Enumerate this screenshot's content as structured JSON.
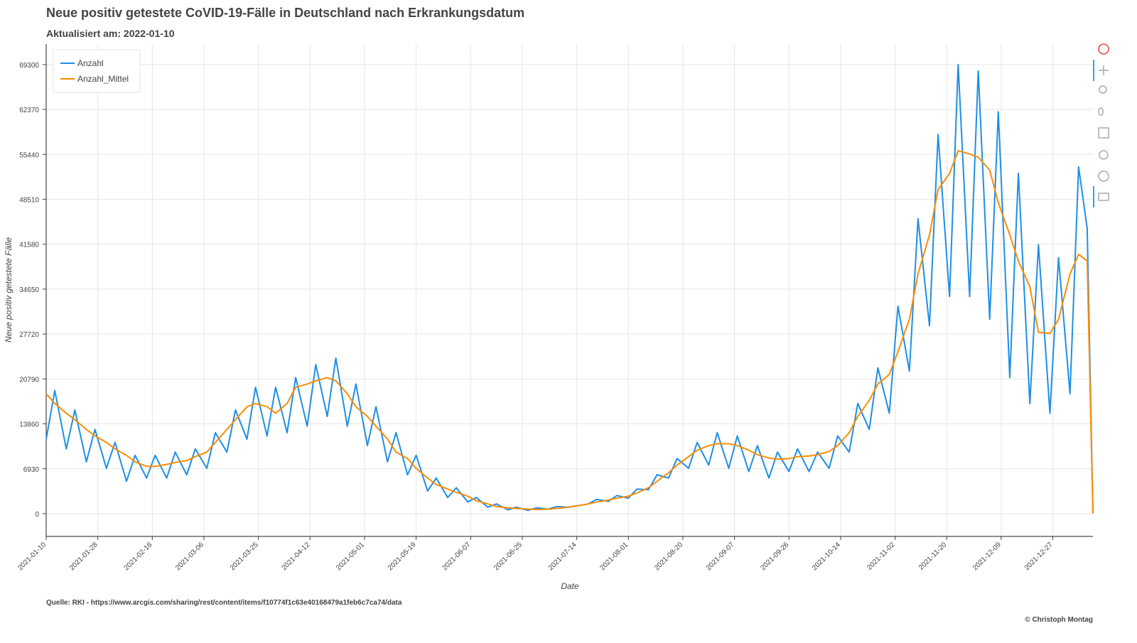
{
  "chart_data": {
    "type": "line",
    "title": "Neue positiv getestete CoVID-19-Fälle in Deutschland nach Erkrankungsdatum",
    "subtitle": "Aktualisiert am: 2022-01-10",
    "x_label": "Date",
    "y_label": "Neue positiv getestete Fälle",
    "source": "Quelle: RKI - https://www.arcgis.com/sharing/rest/content/items/f10774f1c63e40168479a1feb6c7ca74/data",
    "credit": "© Christoph Montag",
    "legend": "top_left",
    "grid": true,
    "x": [
      "2021-01-10",
      "2021-01-13",
      "2021-01-17",
      "2021-01-20",
      "2021-01-24",
      "2021-01-27",
      "2021-01-31",
      "2021-02-03",
      "2021-02-07",
      "2021-02-10",
      "2021-02-14",
      "2021-02-17",
      "2021-02-21",
      "2021-02-24",
      "2021-02-28",
      "2021-03-03",
      "2021-03-07",
      "2021-03-10",
      "2021-03-14",
      "2021-03-17",
      "2021-03-21",
      "2021-03-24",
      "2021-03-28",
      "2021-03-31",
      "2021-04-04",
      "2021-04-07",
      "2021-04-11",
      "2021-04-14",
      "2021-04-18",
      "2021-04-21",
      "2021-04-25",
      "2021-04-28",
      "2021-05-02",
      "2021-05-05",
      "2021-05-09",
      "2021-05-12",
      "2021-05-16",
      "2021-05-19",
      "2021-05-23",
      "2021-05-26",
      "2021-05-30",
      "2021-06-02",
      "2021-06-06",
      "2021-06-09",
      "2021-06-13",
      "2021-06-16",
      "2021-06-20",
      "2021-06-23",
      "2021-06-27",
      "2021-06-30",
      "2021-07-04",
      "2021-07-07",
      "2021-07-11",
      "2021-07-14",
      "2021-07-18",
      "2021-07-21",
      "2021-07-25",
      "2021-07-28",
      "2021-08-01",
      "2021-08-04",
      "2021-08-08",
      "2021-08-11",
      "2021-08-15",
      "2021-08-18",
      "2021-08-22",
      "2021-08-25",
      "2021-08-29",
      "2021-09-01",
      "2021-09-05",
      "2021-09-08",
      "2021-09-12",
      "2021-09-15",
      "2021-09-19",
      "2021-09-22",
      "2021-09-26",
      "2021-09-29",
      "2021-10-03",
      "2021-10-06",
      "2021-10-10",
      "2021-10-13",
      "2021-10-17",
      "2021-10-20",
      "2021-10-24",
      "2021-10-27",
      "2021-10-31",
      "2021-11-03",
      "2021-11-07",
      "2021-11-10",
      "2021-11-14",
      "2021-11-17",
      "2021-11-21",
      "2021-11-24",
      "2021-11-28",
      "2021-12-01",
      "2021-12-05",
      "2021-12-08",
      "2021-12-12",
      "2021-12-15",
      "2021-12-19",
      "2021-12-22",
      "2021-12-26",
      "2021-12-29",
      "2022-01-02",
      "2022-01-05",
      "2022-01-08",
      "2022-01-10"
    ],
    "series": [
      {
        "name": "Anzahl",
        "color": "#1e8fe6",
        "values": [
          11500,
          19000,
          10000,
          16000,
          8000,
          13000,
          7000,
          11000,
          5000,
          9000,
          5500,
          9000,
          5500,
          9500,
          6000,
          10000,
          7000,
          12500,
          9500,
          16000,
          11500,
          19500,
          12000,
          19500,
          12500,
          21000,
          13500,
          23000,
          15000,
          24000,
          13500,
          20000,
          10500,
          16500,
          8000,
          12500,
          6000,
          9000,
          3500,
          5500,
          2500,
          4000,
          1800,
          2500,
          1000,
          1500,
          600,
          1000,
          500,
          900,
          700,
          1100,
          1000,
          1200,
          1500,
          2200,
          1900,
          2800,
          2400,
          3800,
          3700,
          6000,
          5500,
          8500,
          7000,
          11000,
          7500,
          12500,
          7000,
          12000,
          6500,
          10500,
          5500,
          9500,
          6500,
          10000,
          6500,
          9500,
          7000,
          12000,
          9500,
          17000,
          13000,
          22500,
          15500,
          32000,
          22000,
          45500,
          29000,
          58500,
          33500,
          69300,
          33500,
          68300,
          30000,
          62000,
          21000,
          52500,
          17000,
          41500,
          15500,
          39500,
          18500,
          53500,
          44000,
          0
        ]
      },
      {
        "name": "Anzahl_Mittel",
        "color": "#ff8c00",
        "values": [
          18500,
          17000,
          15500,
          14500,
          13000,
          12000,
          11000,
          10000,
          9000,
          8000,
          7300,
          7300,
          7600,
          7900,
          8200,
          8800,
          9500,
          11000,
          13000,
          14500,
          16500,
          17000,
          16500,
          15500,
          17000,
          19500,
          20000,
          20500,
          21000,
          20500,
          18500,
          16500,
          15000,
          13500,
          11500,
          9500,
          8500,
          7000,
          5500,
          4500,
          3800,
          3300,
          2700,
          2000,
          1500,
          1100,
          900,
          800,
          700,
          650,
          700,
          800,
          1000,
          1200,
          1500,
          1800,
          2100,
          2400,
          2700,
          3200,
          4000,
          5000,
          6300,
          7500,
          8800,
          9800,
          10500,
          10800,
          10800,
          10500,
          9800,
          9100,
          8600,
          8400,
          8500,
          8800,
          8900,
          9100,
          9600,
          10500,
          12500,
          15000,
          17500,
          20000,
          21500,
          25000,
          30000,
          37000,
          43000,
          50000,
          52500,
          56000,
          55500,
          55000,
          53000,
          48000,
          43000,
          39000,
          35000,
          28000,
          27800,
          30000,
          37000,
          40000,
          39000,
          0
        ]
      }
    ],
    "xlim": [
      "2021-01-10",
      "2022-01-10"
    ],
    "xticks": [
      "2021-01-10",
      "2021-01-28",
      "2021-02-16",
      "2021-03-06",
      "2021-03-25",
      "2021-04-12",
      "2021-05-01",
      "2021-05-19",
      "2021-06-07",
      "2021-06-25",
      "2021-07-14",
      "2021-08-01",
      "2021-08-20",
      "2021-09-07",
      "2021-09-26",
      "2021-10-14",
      "2021-11-02",
      "2021-11-20",
      "2021-12-09",
      "2021-12-27"
    ],
    "ylim": [
      -3510,
      72460
    ],
    "yticks": [
      0,
      6930,
      13860,
      20790,
      27720,
      34650,
      41580,
      48510,
      55440,
      62370,
      69300
    ]
  }
}
